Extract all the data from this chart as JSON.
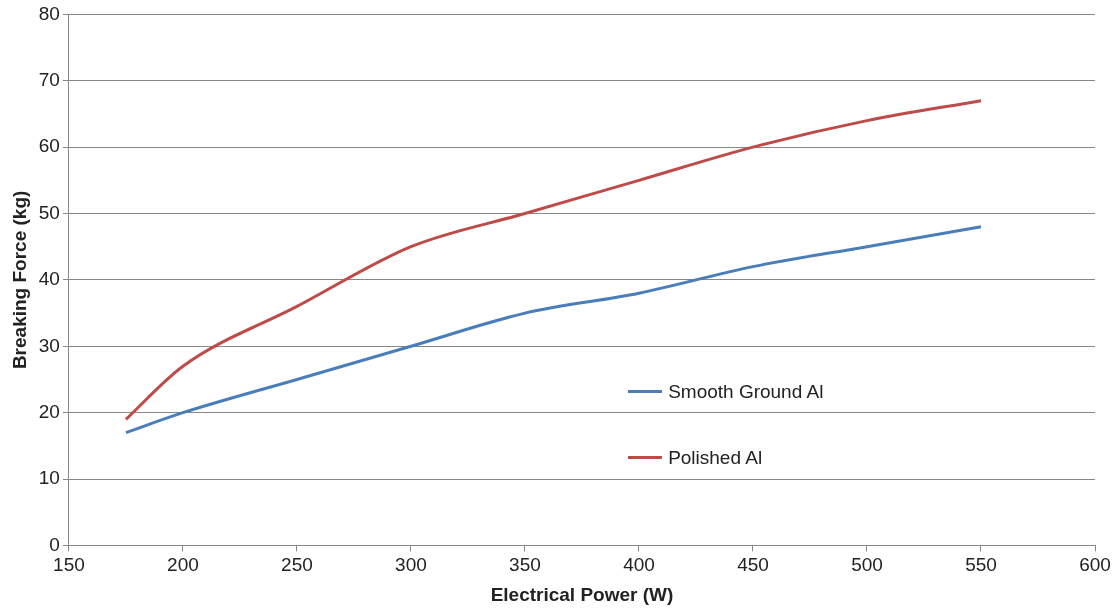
{
  "chart_data": {
    "type": "line",
    "xlabel": "Electrical Power (W)",
    "ylabel": "Breaking Force (kg)",
    "x": [
      175,
      200,
      250,
      300,
      350,
      400,
      450,
      500,
      550
    ],
    "series": [
      {
        "name": "Smooth Ground Al",
        "color": "#4a7ebb",
        "values": [
          17,
          20,
          25,
          30,
          35,
          38,
          42,
          45,
          48
        ]
      },
      {
        "name": "Polished Al",
        "color": "#be4b48",
        "values": [
          19,
          27,
          36,
          45,
          50,
          55,
          60,
          64,
          67
        ]
      }
    ],
    "xlim": [
      150,
      600
    ],
    "xticks": [
      150,
      200,
      250,
      300,
      350,
      400,
      450,
      500,
      550,
      600
    ],
    "ylim": [
      0,
      80
    ],
    "yticks": [
      0,
      10,
      20,
      30,
      40,
      50,
      60,
      70,
      80
    ],
    "grid": "y",
    "legend": "right",
    "marker": "none",
    "line_style": "solid"
  }
}
